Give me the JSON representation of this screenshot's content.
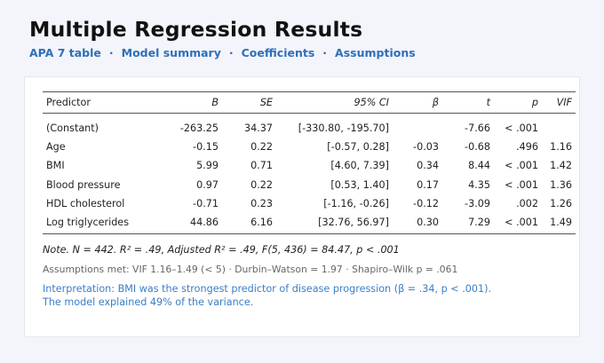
{
  "page": {
    "title": "Multiple Regression Results"
  },
  "nav": {
    "items": [
      "APA 7 table",
      "Model summary",
      "Coefficients",
      "Assumptions"
    ],
    "separator": "·"
  },
  "table": {
    "headers": [
      "Predictor",
      "B",
      "SE",
      "95% CI",
      "β",
      "t",
      "p",
      "VIF"
    ],
    "rows": [
      [
        "(Constant)",
        "-263.25",
        "34.37",
        "[-330.80, -195.70]",
        "",
        "-7.66",
        "< .001",
        ""
      ],
      [
        "Age",
        "-0.15",
        "0.22",
        "[-0.57, 0.28]",
        "-0.03",
        "-0.68",
        ".496",
        "1.16"
      ],
      [
        "BMI",
        "5.99",
        "0.71",
        "[4.60, 7.39]",
        "0.34",
        "8.44",
        "< .001",
        "1.42"
      ],
      [
        "Blood pressure",
        "0.97",
        "0.22",
        "[0.53, 1.40]",
        "0.17",
        "4.35",
        "< .001",
        "1.36"
      ],
      [
        "HDL cholesterol",
        "-0.71",
        "0.23",
        "[-1.16, -0.26]",
        "-0.12",
        "-3.09",
        ".002",
        "1.26"
      ],
      [
        "Log triglycerides",
        "44.86",
        "6.16",
        "[32.76, 56.97]",
        "0.30",
        "7.29",
        "< .001",
        "1.49"
      ]
    ]
  },
  "note": "Note. N = 442.  R² = .49,  Adjusted R² = .49,  F(5, 436) = 84.47,  p < .001",
  "assumptions": "Assumptions met:  VIF 1.16–1.49 (< 5)  ·  Durbin–Watson = 1.97  ·  Shapiro–Wilk p = .061",
  "interpretation": {
    "line1": "Interpretation: BMI was the strongest predictor of disease progression (β = .34, p < .001).",
    "line2": "The model explained 49% of the variance."
  },
  "colors": {
    "accent": "#2f6fb8",
    "interpretation": "#3a7ec8",
    "background": "#f3f5fb"
  }
}
